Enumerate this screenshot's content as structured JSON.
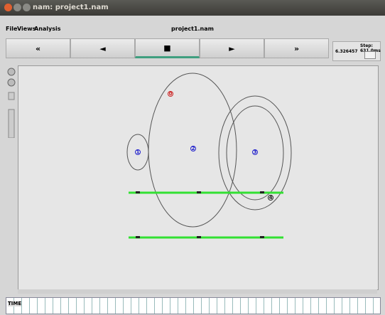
{
  "window": {
    "title": "nam: project1.nam"
  },
  "menu": [
    "File",
    "Views",
    "Analysis"
  ],
  "file_name": "project1.nam",
  "buttons": [
    "«",
    "◄",
    "■",
    "►",
    "»"
  ],
  "time": "6.326457",
  "step": "Step: 631.0ms",
  "nodes": [
    {
      "label": "0"
    },
    {
      "label": "1"
    },
    {
      "label": "2"
    },
    {
      "label": "3"
    },
    {
      "label": "4"
    }
  ],
  "timeline_label": "TIME"
}
